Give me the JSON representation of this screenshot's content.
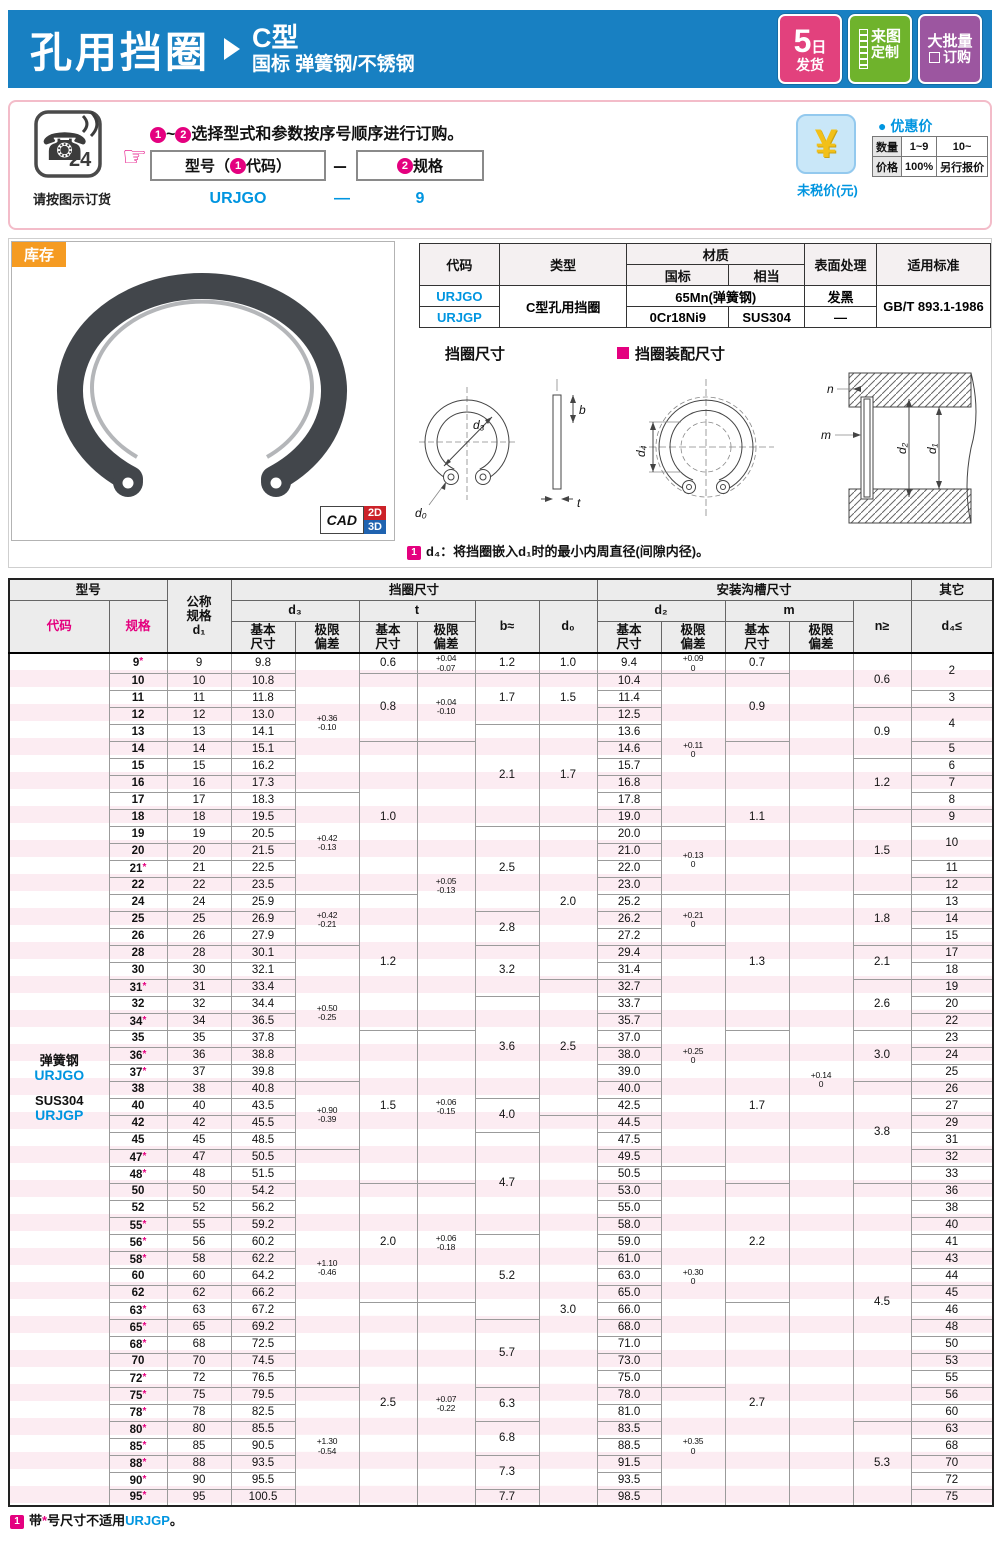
{
  "colors": {
    "banner_blue": "#1880c2",
    "accent_blue": "#0095e0",
    "magenta": "#e4007f",
    "orange": "#f59b22",
    "stripe_pink": "#fcecf2",
    "badge_pink": "#e2417d",
    "badge_green": "#6fb32c",
    "badge_purple": "#9c56a0"
  },
  "banner": {
    "title": "孔用挡圈",
    "type": "C型",
    "subtitle": "国标  弹簧钢/不锈钢",
    "badges": [
      {
        "big": "5",
        "small": "日",
        "l2": "发货",
        "color": "#e2417d"
      },
      {
        "l1": "来图",
        "l2": "定制",
        "color": "#6fb32c"
      },
      {
        "l1": "大批量",
        "l2": "订购",
        "color": "#9c56a0"
      }
    ]
  },
  "order": {
    "phone_label": "24",
    "phone_note": "请按图示订货",
    "n1": "1",
    "n2": "2",
    "step_tilde": "~",
    "step_text": "选择型式和参数按序号顺序进行订购。",
    "box1_pre": "型号（",
    "box1_post": "代码）",
    "dash": "－",
    "box2_text": "规格",
    "example_code": "URJGO",
    "example_dash": "—",
    "example_spec": "9",
    "price": {
      "currency": "¥",
      "title": "优惠价",
      "dot": "●",
      "qty_label": "数量",
      "qty_r1": "1~9",
      "qty_r2": "10~",
      "price_label": "价格",
      "price_r1": "100%",
      "price_r2": "另行报价",
      "note": "未税价(元)"
    }
  },
  "stock": {
    "label": "库存",
    "cad": "CAD",
    "cad_2d": "2D",
    "cad_3d": "3D"
  },
  "material_table": {
    "h_code": "代码",
    "h_type": "类型",
    "h_mat": "材质",
    "h_gb": "国标",
    "h_eq": "相当",
    "h_surface": "表面处理",
    "h_std": "适用标准",
    "type": "C型孔用挡圈",
    "std": "GB/T 893.1-1986",
    "r1_code": "URJGO",
    "r1_mat": "65Mn(弹簧钢)",
    "r1_surface": "发黑",
    "r2_code": "URJGP",
    "r2_gb": "0Cr18Ni9",
    "r2_eq": "SUS304",
    "r2_surface": "—"
  },
  "diagram": {
    "dim_title": "挡圈尺寸",
    "asm_title": "挡圈装配尺寸",
    "d3": "d₃",
    "d0": "d₀",
    "b": "b",
    "t": "t",
    "d4": "d₄",
    "n": "n",
    "m": "m",
    "d2": "d₂",
    "d1": "d₁",
    "note_num": "1",
    "note": "d₄：将挡圈嵌入d₁时的最小内周直径(间隙内径)。"
  },
  "spec_table": {
    "h_model": "型号",
    "h_code": "代码",
    "h_spec": "规格",
    "h_nominal": "公称\n规格\nd₁",
    "h_ring": "挡圈尺寸",
    "h_groove": "安装沟槽尺寸",
    "h_other": "其它",
    "h_d3": "d₃",
    "h_t": "t",
    "h_b": "b≈",
    "h_d0": "d₀",
    "h_d2": "d₂",
    "h_m": "m",
    "h_n": "n≥",
    "h_d4": "d₄≤",
    "h_basic": "基本\n尺寸",
    "h_dev": "极限\n偏差",
    "material_labels": {
      "l1": "弹簧钢",
      "l2": "URJGO",
      "l3": "SUS304",
      "l4": "URJGP"
    },
    "rows": [
      [
        "9",
        1,
        "9.8",
        "9.4"
      ],
      [
        "10",
        0,
        "10.8",
        "10.4"
      ],
      [
        "11",
        0,
        "11.8",
        "11.4"
      ],
      [
        "12",
        0,
        "13.0",
        "12.5"
      ],
      [
        "13",
        0,
        "14.1",
        "13.6"
      ],
      [
        "14",
        0,
        "15.1",
        "14.6"
      ],
      [
        "15",
        0,
        "16.2",
        "15.7"
      ],
      [
        "16",
        0,
        "17.3",
        "16.8"
      ],
      [
        "17",
        0,
        "18.3",
        "17.8"
      ],
      [
        "18",
        0,
        "19.5",
        "19.0"
      ],
      [
        "19",
        0,
        "20.5",
        "20.0"
      ],
      [
        "20",
        0,
        "21.5",
        "21.0"
      ],
      [
        "21",
        1,
        "22.5",
        "22.0"
      ],
      [
        "22",
        0,
        "23.5",
        "23.0"
      ],
      [
        "24",
        0,
        "25.9",
        "25.2"
      ],
      [
        "25",
        0,
        "26.9",
        "26.2"
      ],
      [
        "26",
        0,
        "27.9",
        "27.2"
      ],
      [
        "28",
        0,
        "30.1",
        "29.4"
      ],
      [
        "30",
        0,
        "32.1",
        "31.4"
      ],
      [
        "31",
        1,
        "33.4",
        "32.7"
      ],
      [
        "32",
        0,
        "34.4",
        "33.7"
      ],
      [
        "34",
        1,
        "36.5",
        "35.7"
      ],
      [
        "35",
        0,
        "37.8",
        "37.0"
      ],
      [
        "36",
        1,
        "38.8",
        "38.0"
      ],
      [
        "37",
        1,
        "39.8",
        "39.0"
      ],
      [
        "38",
        0,
        "40.8",
        "40.0"
      ],
      [
        "40",
        0,
        "43.5",
        "42.5"
      ],
      [
        "42",
        0,
        "45.5",
        "44.5"
      ],
      [
        "45",
        0,
        "48.5",
        "47.5"
      ],
      [
        "47",
        1,
        "50.5",
        "49.5"
      ],
      [
        "48",
        1,
        "51.5",
        "50.5"
      ],
      [
        "50",
        0,
        "54.2",
        "53.0"
      ],
      [
        "52",
        0,
        "56.2",
        "55.0"
      ],
      [
        "55",
        1,
        "59.2",
        "58.0"
      ],
      [
        "56",
        1,
        "60.2",
        "59.0"
      ],
      [
        "58",
        1,
        "62.2",
        "61.0"
      ],
      [
        "60",
        0,
        "64.2",
        "63.0"
      ],
      [
        "62",
        0,
        "66.2",
        "65.0"
      ],
      [
        "63",
        1,
        "67.2",
        "66.0"
      ],
      [
        "65",
        1,
        "69.2",
        "68.0"
      ],
      [
        "68",
        1,
        "72.5",
        "71.0"
      ],
      [
        "70",
        0,
        "74.5",
        "73.0"
      ],
      [
        "72",
        1,
        "76.5",
        "75.0"
      ],
      [
        "75",
        1,
        "79.5",
        "78.0"
      ],
      [
        "78",
        1,
        "82.5",
        "81.0"
      ],
      [
        "80",
        1,
        "85.5",
        "83.5"
      ],
      [
        "85",
        1,
        "90.5",
        "88.5"
      ],
      [
        "88",
        1,
        "93.5",
        "91.5"
      ],
      [
        "90",
        1,
        "95.5",
        "93.5"
      ],
      [
        "95",
        1,
        "100.5",
        "98.5"
      ]
    ],
    "groups": {
      "d3dev": [
        {
          "n": 8,
          "up": "+0.36",
          "dn": "-0.10"
        },
        {
          "n": 6,
          "up": "+0.42",
          "dn": "-0.13"
        },
        {
          "n": 3,
          "up": "+0.42",
          "dn": "-0.21"
        },
        {
          "n": 8,
          "up": "+0.50",
          "dn": "-0.25"
        },
        {
          "n": 4,
          "up": "+0.90",
          "dn": "-0.39"
        },
        {
          "n": 14,
          "up": "+1.10",
          "dn": "-0.46"
        },
        {
          "n": 7,
          "up": "+1.30",
          "dn": "-0.54"
        }
      ],
      "t": [
        {
          "n": 1,
          "v": "0.6"
        },
        {
          "n": 4,
          "v": "0.8"
        },
        {
          "n": 9,
          "v": "1.0"
        },
        {
          "n": 8,
          "v": "1.2"
        },
        {
          "n": 9,
          "v": "1.5"
        },
        {
          "n": 7,
          "v": "2.0"
        },
        {
          "n": 12,
          "v": "2.5"
        }
      ],
      "tdev": [
        {
          "n": 1,
          "up": "+0.04",
          "dn": "-0.07"
        },
        {
          "n": 4,
          "up": "+0.04",
          "dn": "-0.10"
        },
        {
          "n": 17,
          "up": "+0.05",
          "dn": "-0.13"
        },
        {
          "n": 9,
          "up": "+0.06",
          "dn": "-0.15"
        },
        {
          "n": 7,
          "up": "+0.06",
          "dn": "-0.18"
        },
        {
          "n": 12,
          "up": "+0.07",
          "dn": "-0.22"
        }
      ],
      "b": [
        {
          "n": 1,
          "v": "1.2"
        },
        {
          "n": 3,
          "v": "1.7"
        },
        {
          "n": 6,
          "v": "2.1"
        },
        {
          "n": 5,
          "v": "2.5"
        },
        {
          "n": 2,
          "v": "2.8"
        },
        {
          "n": 3,
          "v": "3.2"
        },
        {
          "n": 6,
          "v": "3.6"
        },
        {
          "n": 2,
          "v": "4.0"
        },
        {
          "n": 6,
          "v": "4.7"
        },
        {
          "n": 5,
          "v": "5.2"
        },
        {
          "n": 4,
          "v": "5.7"
        },
        {
          "n": 2,
          "v": "6.3"
        },
        {
          "n": 2,
          "v": "6.8"
        },
        {
          "n": 2,
          "v": "7.3"
        },
        {
          "n": 1,
          "v": "7.7"
        }
      ],
      "d0": [
        {
          "n": 1,
          "v": "1.0"
        },
        {
          "n": 3,
          "v": "1.5"
        },
        {
          "n": 6,
          "v": "1.7"
        },
        {
          "n": 9,
          "v": "2.0"
        },
        {
          "n": 8,
          "v": "2.5"
        },
        {
          "n": 23,
          "v": "3.0"
        }
      ],
      "d2dev": [
        {
          "n": 1,
          "up": "+0.09",
          "dn": "0"
        },
        {
          "n": 9,
          "up": "+0.11",
          "dn": "0"
        },
        {
          "n": 4,
          "up": "+0.13",
          "dn": "0"
        },
        {
          "n": 3,
          "up": "+0.21",
          "dn": "0"
        },
        {
          "n": 13,
          "up": "+0.25",
          "dn": "0"
        },
        {
          "n": 13,
          "up": "+0.30",
          "dn": "0"
        },
        {
          "n": 7,
          "up": "+0.35",
          "dn": "0"
        }
      ],
      "m": [
        {
          "n": 1,
          "v": "0.7"
        },
        {
          "n": 4,
          "v": "0.9"
        },
        {
          "n": 9,
          "v": "1.1"
        },
        {
          "n": 8,
          "v": "1.3"
        },
        {
          "n": 9,
          "v": "1.7"
        },
        {
          "n": 7,
          "v": "2.2"
        },
        {
          "n": 12,
          "v": "2.7"
        }
      ],
      "mdev": [
        {
          "n": 50,
          "up": "+0.14",
          "dn": "0"
        }
      ],
      "n": [
        {
          "n": 3,
          "v": "0.6"
        },
        {
          "n": 3,
          "v": "0.9"
        },
        {
          "n": 3,
          "v": "1.2"
        },
        {
          "n": 5,
          "v": "1.5"
        },
        {
          "n": 3,
          "v": "1.8"
        },
        {
          "n": 2,
          "v": "2.1"
        },
        {
          "n": 3,
          "v": "2.6"
        },
        {
          "n": 3,
          "v": "3.0"
        },
        {
          "n": 6,
          "v": "3.8"
        },
        {
          "n": 14,
          "v": "4.5"
        },
        {
          "n": 5,
          "v": "5.3"
        }
      ],
      "d4": [
        {
          "n": 2,
          "v": "2"
        },
        {
          "n": 1,
          "v": "3"
        },
        {
          "n": 2,
          "v": "4"
        },
        {
          "n": 1,
          "v": "5"
        },
        {
          "n": 1,
          "v": "6"
        },
        {
          "n": 1,
          "v": "7"
        },
        {
          "n": 1,
          "v": "8"
        },
        {
          "n": 1,
          "v": "9"
        },
        {
          "n": 2,
          "v": "10"
        },
        {
          "n": 1,
          "v": "11"
        },
        {
          "n": 1,
          "v": "12"
        },
        {
          "n": 1,
          "v": "13"
        },
        {
          "n": 1,
          "v": "14"
        },
        {
          "n": 1,
          "v": "15"
        },
        {
          "n": 1,
          "v": "17"
        },
        {
          "n": 1,
          "v": "18"
        },
        {
          "n": 1,
          "v": "19"
        },
        {
          "n": 1,
          "v": "20"
        },
        {
          "n": 1,
          "v": "22"
        },
        {
          "n": 1,
          "v": "23"
        },
        {
          "n": 1,
          "v": "24"
        },
        {
          "n": 1,
          "v": "25"
        },
        {
          "n": 1,
          "v": "26"
        },
        {
          "n": 1,
          "v": "27"
        },
        {
          "n": 1,
          "v": "29"
        },
        {
          "n": 1,
          "v": "31"
        },
        {
          "n": 1,
          "v": "32"
        },
        {
          "n": 1,
          "v": "33"
        },
        {
          "n": 1,
          "v": "36"
        },
        {
          "n": 1,
          "v": "38"
        },
        {
          "n": 1,
          "v": "40"
        },
        {
          "n": 1,
          "v": "41"
        },
        {
          "n": 1,
          "v": "43"
        },
        {
          "n": 1,
          "v": "44"
        },
        {
          "n": 1,
          "v": "45"
        },
        {
          "n": 1,
          "v": "46"
        },
        {
          "n": 1,
          "v": "48"
        },
        {
          "n": 1,
          "v": "50"
        },
        {
          "n": 1,
          "v": "53"
        },
        {
          "n": 1,
          "v": "55"
        },
        {
          "n": 1,
          "v": "56"
        },
        {
          "n": 1,
          "v": "60"
        },
        {
          "n": 1,
          "v": "63"
        },
        {
          "n": 1,
          "v": "68"
        },
        {
          "n": 1,
          "v": "70"
        },
        {
          "n": 1,
          "v": "72"
        },
        {
          "n": 1,
          "v": "75"
        }
      ]
    }
  },
  "footnote": {
    "num": "1",
    "pre": "带",
    "star": "*",
    "mid": "号尺寸不适用",
    "code": "URJGP",
    "post": "。"
  }
}
